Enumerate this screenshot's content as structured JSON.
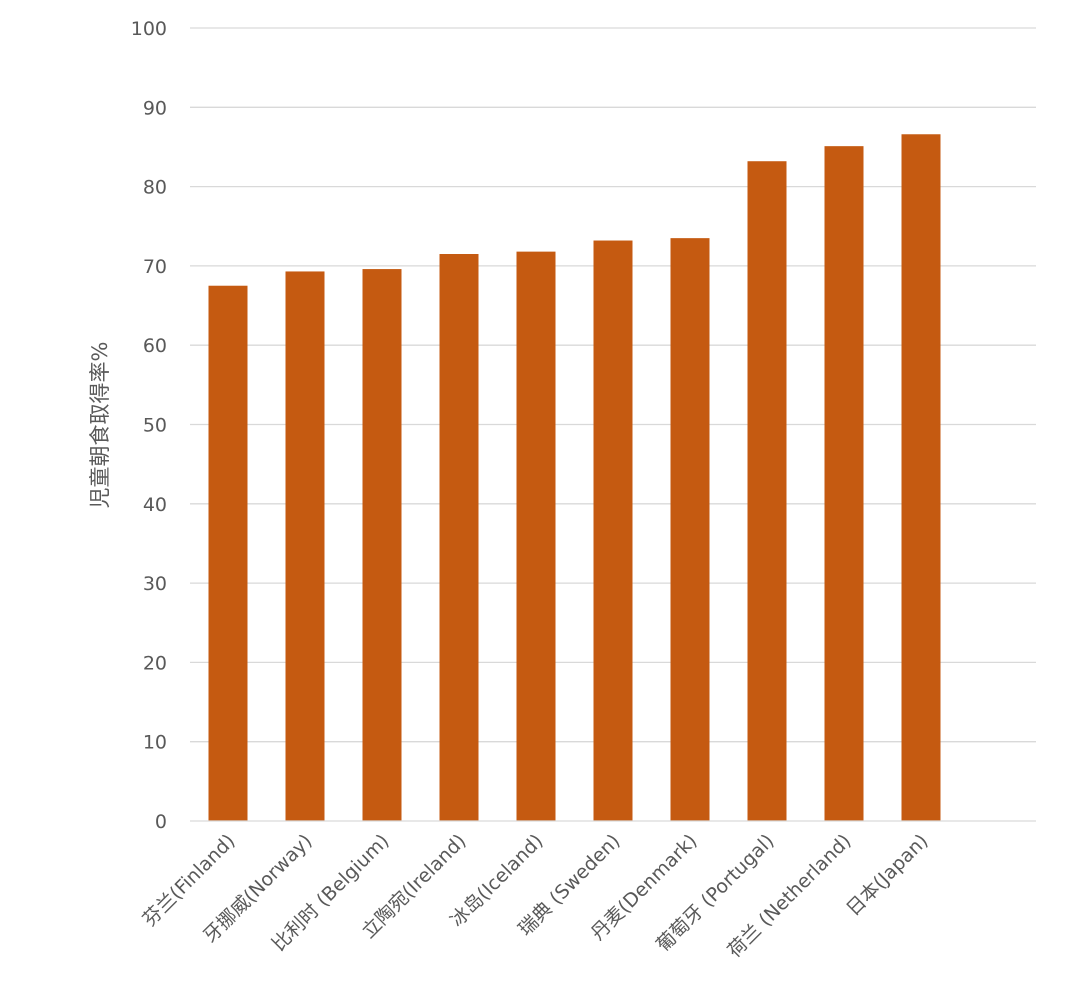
{
  "chart_data": {
    "type": "bar",
    "title": "",
    "xlabel": "",
    "ylabel": "児童朝食取得率%",
    "ylim": [
      0,
      100
    ],
    "yticks": [
      0,
      10,
      20,
      30,
      40,
      50,
      60,
      70,
      80,
      90,
      100
    ],
    "grid": true,
    "legend": "none",
    "bar_color": "#c55a11",
    "grid_color": "#d9d9d9",
    "categories": [
      "芬兰(Finland)",
      "牙挪威(Norway)",
      "比利时 (Belgium)",
      "立陶宛(Ireland)",
      "冰岛(Iceland)",
      "瑞典 (Sweden)",
      "丹麦(Denmark)",
      "葡萄牙 (Portugal)",
      "荷兰 (Netherland)",
      "日本(Japan)"
    ],
    "values": [
      67.5,
      69.3,
      69.6,
      71.5,
      71.8,
      73.2,
      73.5,
      83.2,
      85.1,
      86.6
    ]
  }
}
